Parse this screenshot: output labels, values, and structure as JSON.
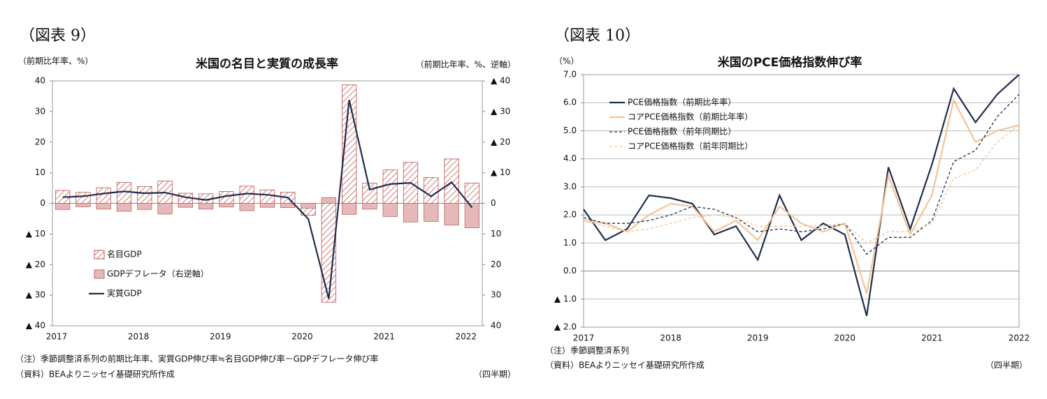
{
  "chart_data": [
    {
      "type": "bar",
      "header": "（図表 9）",
      "title": "米国の名目と実質の成長率",
      "y_label": "（前期比年率、%）",
      "y2_label": "（前期比年率、%、逆軸）",
      "x_label": "（四半期）",
      "note": "（注）季節調整済系列の前期比年率、実質GDP伸び率≒名目GDP伸び率－GDPデフレータ伸び率",
      "source": "（資料）BEAよりニッセイ基礎研究所作成",
      "categories": [
        "2017",
        null,
        null,
        null,
        "2018",
        null,
        null,
        null,
        "2019",
        null,
        null,
        null,
        "2020",
        null,
        null,
        null,
        "2021",
        null,
        null,
        null,
        "2022"
      ],
      "series": [
        {
          "name": "名目GDP",
          "type": "bar",
          "hatch": true,
          "color": "#c0504d",
          "values": [
            4.2,
            3.6,
            5.1,
            6.8,
            5.5,
            7.3,
            3.3,
            3.1,
            3.9,
            5.6,
            4.4,
            3.6,
            -3.9,
            -32.3,
            38.7,
            6.6,
            10.9,
            13.4,
            8.4,
            14.5,
            6.6
          ]
        },
        {
          "name": "GDPデフレータ（右逆軸）",
          "type": "bar",
          "axis": "y2",
          "color": "#e6b9b8",
          "values": [
            2.0,
            1.1,
            1.9,
            2.6,
            2.0,
            3.5,
            1.3,
            1.9,
            1.2,
            2.4,
            1.3,
            1.4,
            1.6,
            -1.9,
            3.6,
            1.9,
            4.3,
            6.1,
            5.9,
            7.1,
            8.0
          ]
        },
        {
          "name": "実質GDP",
          "type": "line",
          "color": "#1f2d4d",
          "values": [
            2.0,
            2.3,
            3.2,
            3.9,
            3.3,
            3.5,
            2.0,
            1.1,
            2.4,
            3.2,
            2.8,
            1.9,
            -5.1,
            -31.2,
            33.8,
            4.5,
            6.3,
            6.7,
            2.3,
            6.9,
            -1.4
          ]
        }
      ],
      "ylim": [
        -40,
        40
      ],
      "yticks": [
        {
          "value": -40,
          "label": "▲ 40"
        },
        {
          "value": -30,
          "label": "▲ 30"
        },
        {
          "value": -20,
          "label": "▲ 20"
        },
        {
          "value": -10,
          "label": "▲ 10"
        },
        0,
        10,
        20,
        30,
        40
      ],
      "y2lim": [
        40,
        -40
      ],
      "y2ticks": [
        40,
        30,
        20,
        10,
        0,
        {
          "value": -10,
          "label": "▲ 10"
        },
        {
          "value": -20,
          "label": "▲ 20"
        },
        {
          "value": -30,
          "label": "▲ 30"
        },
        {
          "value": -40,
          "label": "▲ 40"
        }
      ],
      "grid": false,
      "legend": "lower left"
    },
    {
      "type": "line",
      "header": "（図表 10）",
      "title": "米国のPCE価格指数伸び率",
      "y_label": "（%）",
      "x_label": "（四半期）",
      "note": "（注）季節調整済系列",
      "source": "（資料）BEAよりニッセイ基礎研究所作成",
      "categories": [
        "2017",
        null,
        null,
        null,
        "2018",
        null,
        null,
        null,
        "2019",
        null,
        null,
        null,
        "2020",
        null,
        null,
        null,
        "2021",
        null,
        null,
        null,
        "2022"
      ],
      "series": [
        {
          "name": "PCE価格指数（前期比年率）",
          "color": "#1f2d4d",
          "dash": false,
          "values": [
            2.2,
            1.1,
            1.5,
            2.7,
            2.6,
            2.4,
            1.3,
            1.6,
            0.4,
            2.7,
            1.1,
            1.7,
            1.3,
            -1.6,
            3.7,
            1.5,
            3.8,
            6.5,
            5.3,
            6.3,
            7.0
          ]
        },
        {
          "name": "コアPCE価格指数（前期比年率）",
          "color": "#f4c49a",
          "dash": false,
          "values": [
            1.8,
            1.7,
            1.4,
            2.0,
            2.4,
            2.3,
            1.4,
            1.8,
            1.1,
            2.3,
            1.7,
            1.4,
            1.7,
            -0.8,
            3.4,
            1.3,
            2.7,
            6.1,
            4.6,
            5.0,
            5.2
          ]
        },
        {
          "name": "PCE価格指数（前年同期比）",
          "color": "#1f2d4d",
          "dash": true,
          "values": [
            1.9,
            1.7,
            1.7,
            1.8,
            2.0,
            2.3,
            2.2,
            1.9,
            1.4,
            1.5,
            1.4,
            1.5,
            1.7,
            0.6,
            1.2,
            1.2,
            1.8,
            3.9,
            4.3,
            5.5,
            6.3
          ]
        },
        {
          "name": "コアPCE価格指数（前年同期比）",
          "color": "#f4c49a",
          "dash": true,
          "values": [
            1.8,
            1.6,
            1.4,
            1.5,
            1.7,
            1.9,
            2.0,
            1.9,
            1.6,
            1.6,
            1.6,
            1.6,
            1.7,
            1.0,
            1.4,
            1.4,
            1.7,
            3.3,
            3.6,
            4.6,
            5.2
          ]
        }
      ],
      "ylim": [
        -2,
        7
      ],
      "yticks": [
        {
          "value": -2,
          "label": "▲ 2.0"
        },
        {
          "value": -1,
          "label": "▲ 1.0"
        },
        {
          "value": 0,
          "label": "0.0"
        },
        {
          "value": 1,
          "label": "1.0"
        },
        {
          "value": 2,
          "label": "2.0"
        },
        {
          "value": 3,
          "label": "3.0"
        },
        {
          "value": 4,
          "label": "4.0"
        },
        {
          "value": 5,
          "label": "5.0"
        },
        {
          "value": 6,
          "label": "6.0"
        },
        {
          "value": 7,
          "label": "7.0"
        }
      ],
      "grid": true,
      "legend": "upper left"
    }
  ]
}
